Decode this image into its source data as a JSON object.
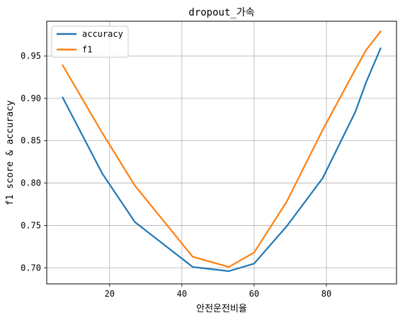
{
  "chart_data": {
    "type": "line",
    "title": "dropout_가속",
    "xlabel": "안전운전비율",
    "ylabel": "f1 score & accuracy",
    "xlim": [
      2.6,
      99.4
    ],
    "ylim": [
      0.681,
      0.991
    ],
    "xticks": [
      20,
      40,
      60,
      80
    ],
    "yticks": [
      0.7,
      0.75,
      0.8,
      0.85,
      0.9,
      0.95
    ],
    "grid": true,
    "legend_position": "top-left",
    "series": [
      {
        "name": "accuracy",
        "color": "#1f77b4",
        "x": [
          7,
          18,
          27,
          43,
          53,
          60,
          69,
          79,
          88,
          91,
          95
        ],
        "y": [
          0.901,
          0.811,
          0.754,
          0.701,
          0.696,
          0.705,
          0.749,
          0.806,
          0.884,
          0.919,
          0.959
        ]
      },
      {
        "name": "f1",
        "color": "#ff7f0e",
        "x": [
          7,
          18,
          27,
          43,
          53,
          60,
          69,
          79,
          88,
          91,
          95
        ],
        "y": [
          0.939,
          0.859,
          0.797,
          0.713,
          0.701,
          0.718,
          0.778,
          0.863,
          0.934,
          0.957,
          0.979
        ]
      }
    ]
  }
}
